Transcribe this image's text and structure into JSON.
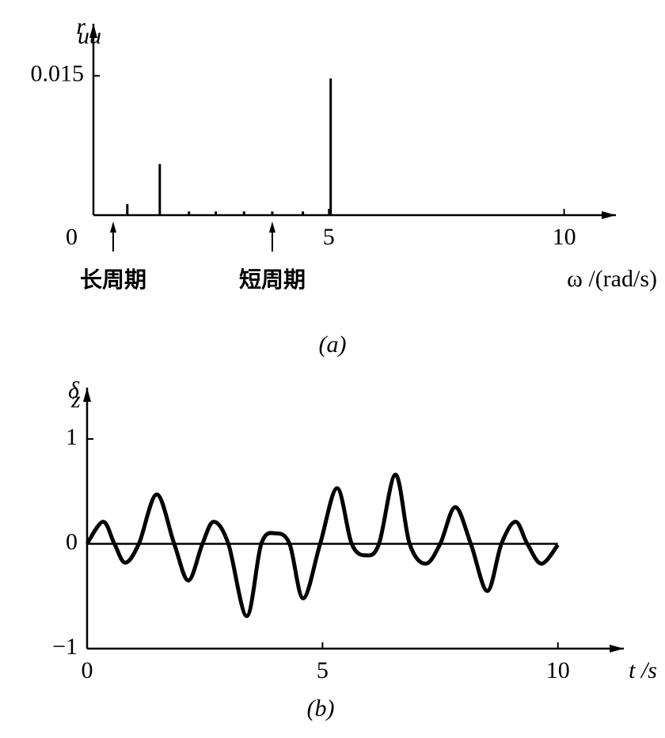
{
  "chart_data": [
    {
      "type": "stem",
      "y_label": "r",
      "y_label_sub": "uu",
      "x_label": "ω /(rad/s)",
      "caption": "(a)",
      "x": [
        0.72,
        1.41,
        2.03,
        2.6,
        3.2,
        3.8,
        4.45,
        5.04
      ],
      "values": [
        0.0012,
        0.0055,
        0.0004,
        0.0004,
        0.0004,
        0.0004,
        0.0004,
        0.0147
      ],
      "color": "#000000",
      "xlim": [
        0,
        11.1
      ],
      "ylim": [
        0,
        0.0206
      ],
      "xticks": [
        0,
        5,
        10
      ],
      "yticks": [
        0.015
      ],
      "annotations": [
        {
          "text": "长周期",
          "x": 0.42
        },
        {
          "text": "短周期",
          "x": 3.8
        }
      ]
    },
    {
      "type": "line",
      "y_label": "δ",
      "y_label_sub": "z",
      "x_label": "t /s",
      "caption": "(b)",
      "x": [
        0,
        0.34,
        0.58,
        0.81,
        1.1,
        1.48,
        1.85,
        2.15,
        2.45,
        2.69,
        3.0,
        3.39,
        3.7,
        4.0,
        4.3,
        4.59,
        4.95,
        5.31,
        5.62,
        5.92,
        6.2,
        6.55,
        6.85,
        7.19,
        7.5,
        7.82,
        8.15,
        8.5,
        8.8,
        9.1,
        9.35,
        9.65,
        10
      ],
      "values": [
        0,
        0.21,
        0,
        -0.18,
        0,
        0.47,
        0,
        -0.35,
        0,
        0.21,
        0,
        -0.69,
        0,
        0.1,
        0,
        -0.52,
        0,
        0.53,
        0,
        -0.11,
        0,
        0.66,
        0,
        -0.19,
        0,
        0.35,
        0,
        -0.45,
        0,
        0.21,
        0,
        -0.19,
        -0.01
      ],
      "color": "#000000",
      "xlim": [
        0,
        11.4
      ],
      "ylim": [
        -1,
        1.49
      ],
      "xticks": [
        0,
        5,
        10
      ],
      "yticks": [
        {
          "value": -1,
          "label": "−1"
        },
        0,
        1
      ],
      "zero_line": true
    }
  ]
}
